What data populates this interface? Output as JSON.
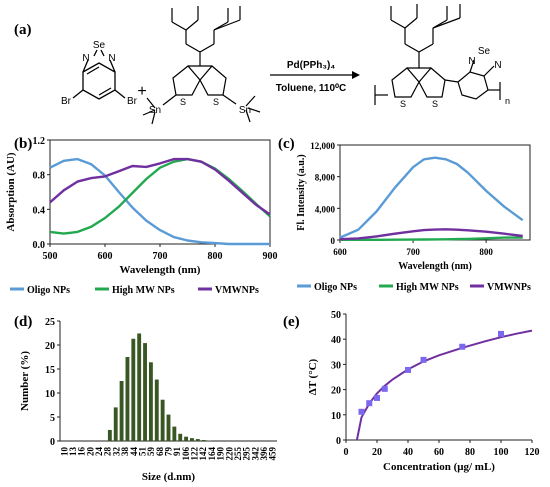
{
  "panel_labels": {
    "a": "(a)",
    "b": "(b)",
    "c": "(c)",
    "d": "(d)",
    "e": "(e)"
  },
  "scheme": {
    "reagent1_atoms": {
      "se": "Se",
      "n1": "N",
      "n2": "N",
      "br1": "Br",
      "br2": "Br"
    },
    "plus": "+",
    "reagent2_atoms": {
      "sn1": "Sn",
      "sn2": "Sn",
      "s1": "S",
      "s2": "S"
    },
    "conditions_top": "Pd(PPh₃)₄",
    "conditions_bottom": "Toluene, 110⁰C",
    "product_atoms": {
      "se": "Se",
      "n1": "N",
      "n2": "N",
      "s1": "S",
      "s2": "S",
      "n_sub": "n"
    }
  },
  "colors": {
    "oligo": "#5b9bd5",
    "highmw": "#22a94f",
    "vmw": "#7030a0",
    "bar": "#385723",
    "fit": "#7030a0",
    "points": "#7b68ee"
  },
  "chart_data": [
    {
      "panel": "b",
      "type": "line",
      "xlabel": "Wavelength (nm)",
      "ylabel": "Absorption (AU)",
      "xlim": [
        500,
        900
      ],
      "ylim": [
        0,
        1.2
      ],
      "xticks": [
        "500",
        "600",
        "700",
        "800",
        "900"
      ],
      "yticks": [
        "0.0",
        "0.4",
        "0.8",
        "1.2"
      ],
      "x": [
        500,
        525,
        550,
        575,
        600,
        625,
        650,
        675,
        700,
        725,
        750,
        775,
        800,
        825,
        850,
        875,
        900
      ],
      "series": [
        {
          "name": "Oligo NPs",
          "values": [
            0.88,
            0.96,
            0.98,
            0.92,
            0.79,
            0.6,
            0.42,
            0.27,
            0.16,
            0.08,
            0.04,
            0.02,
            0.01,
            0.0,
            0.0,
            0.0,
            0.0
          ]
        },
        {
          "name": "High MW NPs",
          "values": [
            0.14,
            0.12,
            0.14,
            0.2,
            0.3,
            0.43,
            0.59,
            0.75,
            0.88,
            0.95,
            0.98,
            0.95,
            0.87,
            0.75,
            0.61,
            0.46,
            0.32
          ]
        },
        {
          "name": "VMWNPs",
          "values": [
            0.48,
            0.62,
            0.72,
            0.76,
            0.78,
            0.84,
            0.9,
            0.89,
            0.93,
            0.98,
            0.98,
            0.95,
            0.86,
            0.73,
            0.59,
            0.45,
            0.34
          ]
        }
      ],
      "legend": "bottom"
    },
    {
      "panel": "c",
      "type": "line",
      "xlabel": "Wavelength (nm)",
      "ylabel": "Fl. Intensity (a.u.)",
      "xlim": [
        600,
        860
      ],
      "ylim": [
        0,
        12000
      ],
      "xticks": [
        "600",
        "700",
        "800"
      ],
      "yticks": [
        "0",
        "4,000",
        "8,000",
        "12,000"
      ],
      "x": [
        600,
        625,
        650,
        675,
        700,
        715,
        730,
        745,
        760,
        775,
        800,
        825,
        850
      ],
      "series": [
        {
          "name": "Oligo NPs",
          "values": [
            300,
            1300,
            3600,
            6600,
            9200,
            10200,
            10400,
            10200,
            9600,
            8500,
            6200,
            4200,
            2500
          ]
        },
        {
          "name": "High MW NPs",
          "values": [
            20,
            20,
            30,
            40,
            50,
            60,
            70,
            90,
            110,
            140,
            220,
            300,
            300
          ]
        },
        {
          "name": "VMWNPs",
          "values": [
            100,
            200,
            450,
            800,
            1100,
            1250,
            1320,
            1350,
            1300,
            1220,
            1050,
            800,
            500
          ]
        }
      ],
      "legend": "bottom"
    },
    {
      "panel": "d",
      "type": "bar",
      "xlabel": "Size (d.nm)",
      "ylabel": "Number (%)",
      "ylim": [
        0,
        25
      ],
      "yticks": [
        "0",
        "5",
        "10",
        "15",
        "20",
        "25"
      ],
      "categories": [
        "10",
        "12",
        "13",
        "15",
        "16",
        "18",
        "20",
        "22",
        "24",
        "26",
        "28",
        "30",
        "32",
        "34",
        "36",
        "38",
        "40",
        "44",
        "48",
        "52",
        "59",
        "66",
        "73",
        "81",
        "90",
        "106",
        "115",
        "126",
        "142",
        "165",
        "190",
        "220",
        "255",
        "295",
        "342",
        "396",
        "459"
      ],
      "xticklabels": [
        "10",
        "13",
        "16",
        "20",
        "24",
        "28",
        "32",
        "38",
        "44",
        "51",
        "59",
        "68",
        "79",
        "91",
        "106",
        "122",
        "142",
        "164",
        "190",
        "220",
        "255",
        "295",
        "342",
        "396",
        "459"
      ],
      "values": [
        0,
        0,
        0,
        0,
        0,
        0,
        0,
        0,
        2.3,
        7.0,
        12.5,
        17.5,
        21.3,
        22.4,
        20.4,
        16.4,
        12.8,
        8.6,
        5.5,
        3.0,
        1.5,
        0.9,
        0.6,
        0.4,
        0.2,
        0.1,
        0,
        0,
        0,
        0,
        0,
        0,
        0,
        0,
        0,
        0,
        0
      ]
    },
    {
      "panel": "e",
      "type": "scatter",
      "xlabel": "Concentration (μg/ mL)",
      "ylabel": "ΔT (°C)",
      "xlim": [
        0,
        120
      ],
      "ylim": [
        0,
        50
      ],
      "xticks": [
        "0",
        "20",
        "40",
        "60",
        "80",
        "100",
        "120"
      ],
      "yticks": [
        "0",
        "10",
        "20",
        "30",
        "40",
        "50"
      ],
      "points": [
        {
          "x": 10,
          "y": 11.2
        },
        {
          "x": 15,
          "y": 14.6
        },
        {
          "x": 20,
          "y": 16.7
        },
        {
          "x": 25,
          "y": 20.3
        },
        {
          "x": 40,
          "y": 27.8
        },
        {
          "x": 50,
          "y": 31.8
        },
        {
          "x": 75,
          "y": 37.0
        },
        {
          "x": 100,
          "y": 42.1
        }
      ],
      "fit": {
        "x": [
          7,
          10,
          15,
          20,
          25,
          30,
          40,
          50,
          60,
          75,
          90,
          100,
          110,
          120
        ],
        "y": [
          0,
          9,
          14.5,
          18.5,
          21.5,
          24,
          28,
          31.2,
          33.6,
          36.6,
          39.2,
          40.8,
          42.2,
          43.4
        ]
      }
    }
  ]
}
